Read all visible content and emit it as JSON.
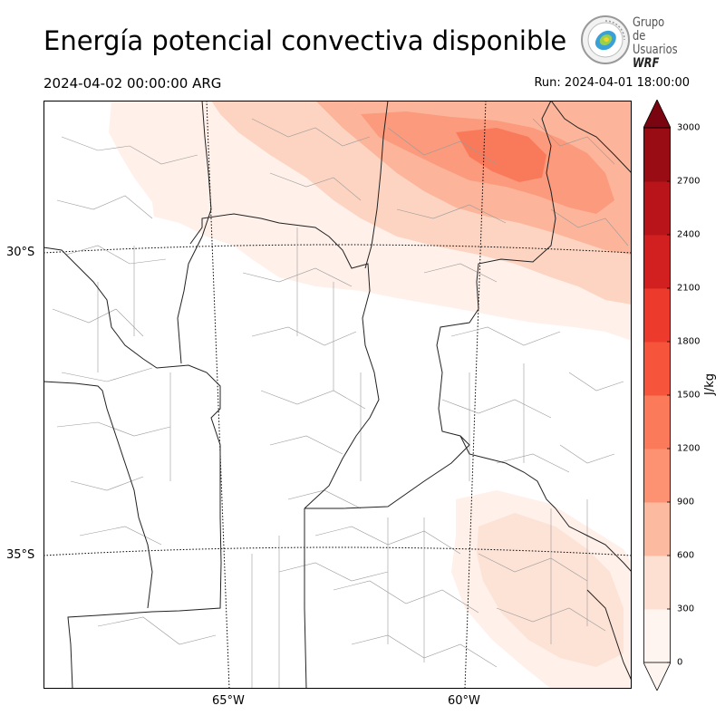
{
  "header": {
    "title": "Energía potencial convectiva disponible",
    "valid_time": "2024-04-02 00:00:00 ARG",
    "run_time": "Run: 2024-04-01 18:00:00"
  },
  "logo": {
    "line1": "Grupo de",
    "line2": "Usuarios",
    "line3": "WRF"
  },
  "map": {
    "variable": "CAPE",
    "lat_labels": [
      "30°S",
      "35°S"
    ],
    "lon_labels": [
      "65°W",
      "60°W"
    ]
  },
  "colorbar": {
    "unit": "J/kg",
    "ticks": [
      "0",
      "300",
      "600",
      "900",
      "1200",
      "1500",
      "1800",
      "2100",
      "2400",
      "2700",
      "3000"
    ],
    "colors": [
      "#fff5f0",
      "#fee0d2",
      "#fcbba1",
      "#fc9272",
      "#fb7a5a",
      "#f6553c",
      "#ec3b2c",
      "#d22020",
      "#b91419",
      "#990c13",
      "#7a0510"
    ],
    "extend": "both"
  }
}
